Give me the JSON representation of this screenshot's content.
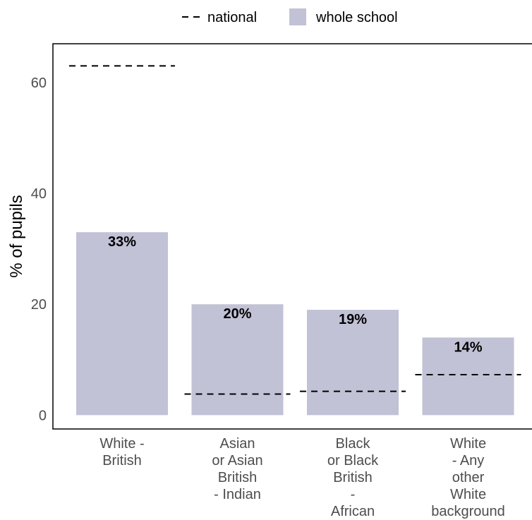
{
  "chart_data": {
    "type": "bar",
    "categories": [
      [
        "White -",
        "British"
      ],
      [
        "Asian",
        "or Asian",
        "British",
        "- Indian"
      ],
      [
        "Black",
        "or Black",
        "British",
        "-",
        "African"
      ],
      [
        "White",
        "- Any",
        "other",
        "White",
        "background"
      ]
    ],
    "series": [
      {
        "name": "whole school",
        "values": [
          33,
          20,
          19,
          14
        ],
        "labels": [
          "33%",
          "20%",
          "19%",
          "14%"
        ]
      },
      {
        "name": "national",
        "values": [
          63,
          3.8,
          4.3,
          7.3
        ]
      }
    ],
    "ylabel": "% of pupils",
    "xlabel": "",
    "ylim": [
      -2.5,
      67
    ],
    "yticks": [
      0,
      20,
      40,
      60
    ],
    "legend_position": "top",
    "colors": {
      "bar": "#c2c2d6",
      "national_line": "#000000"
    }
  }
}
